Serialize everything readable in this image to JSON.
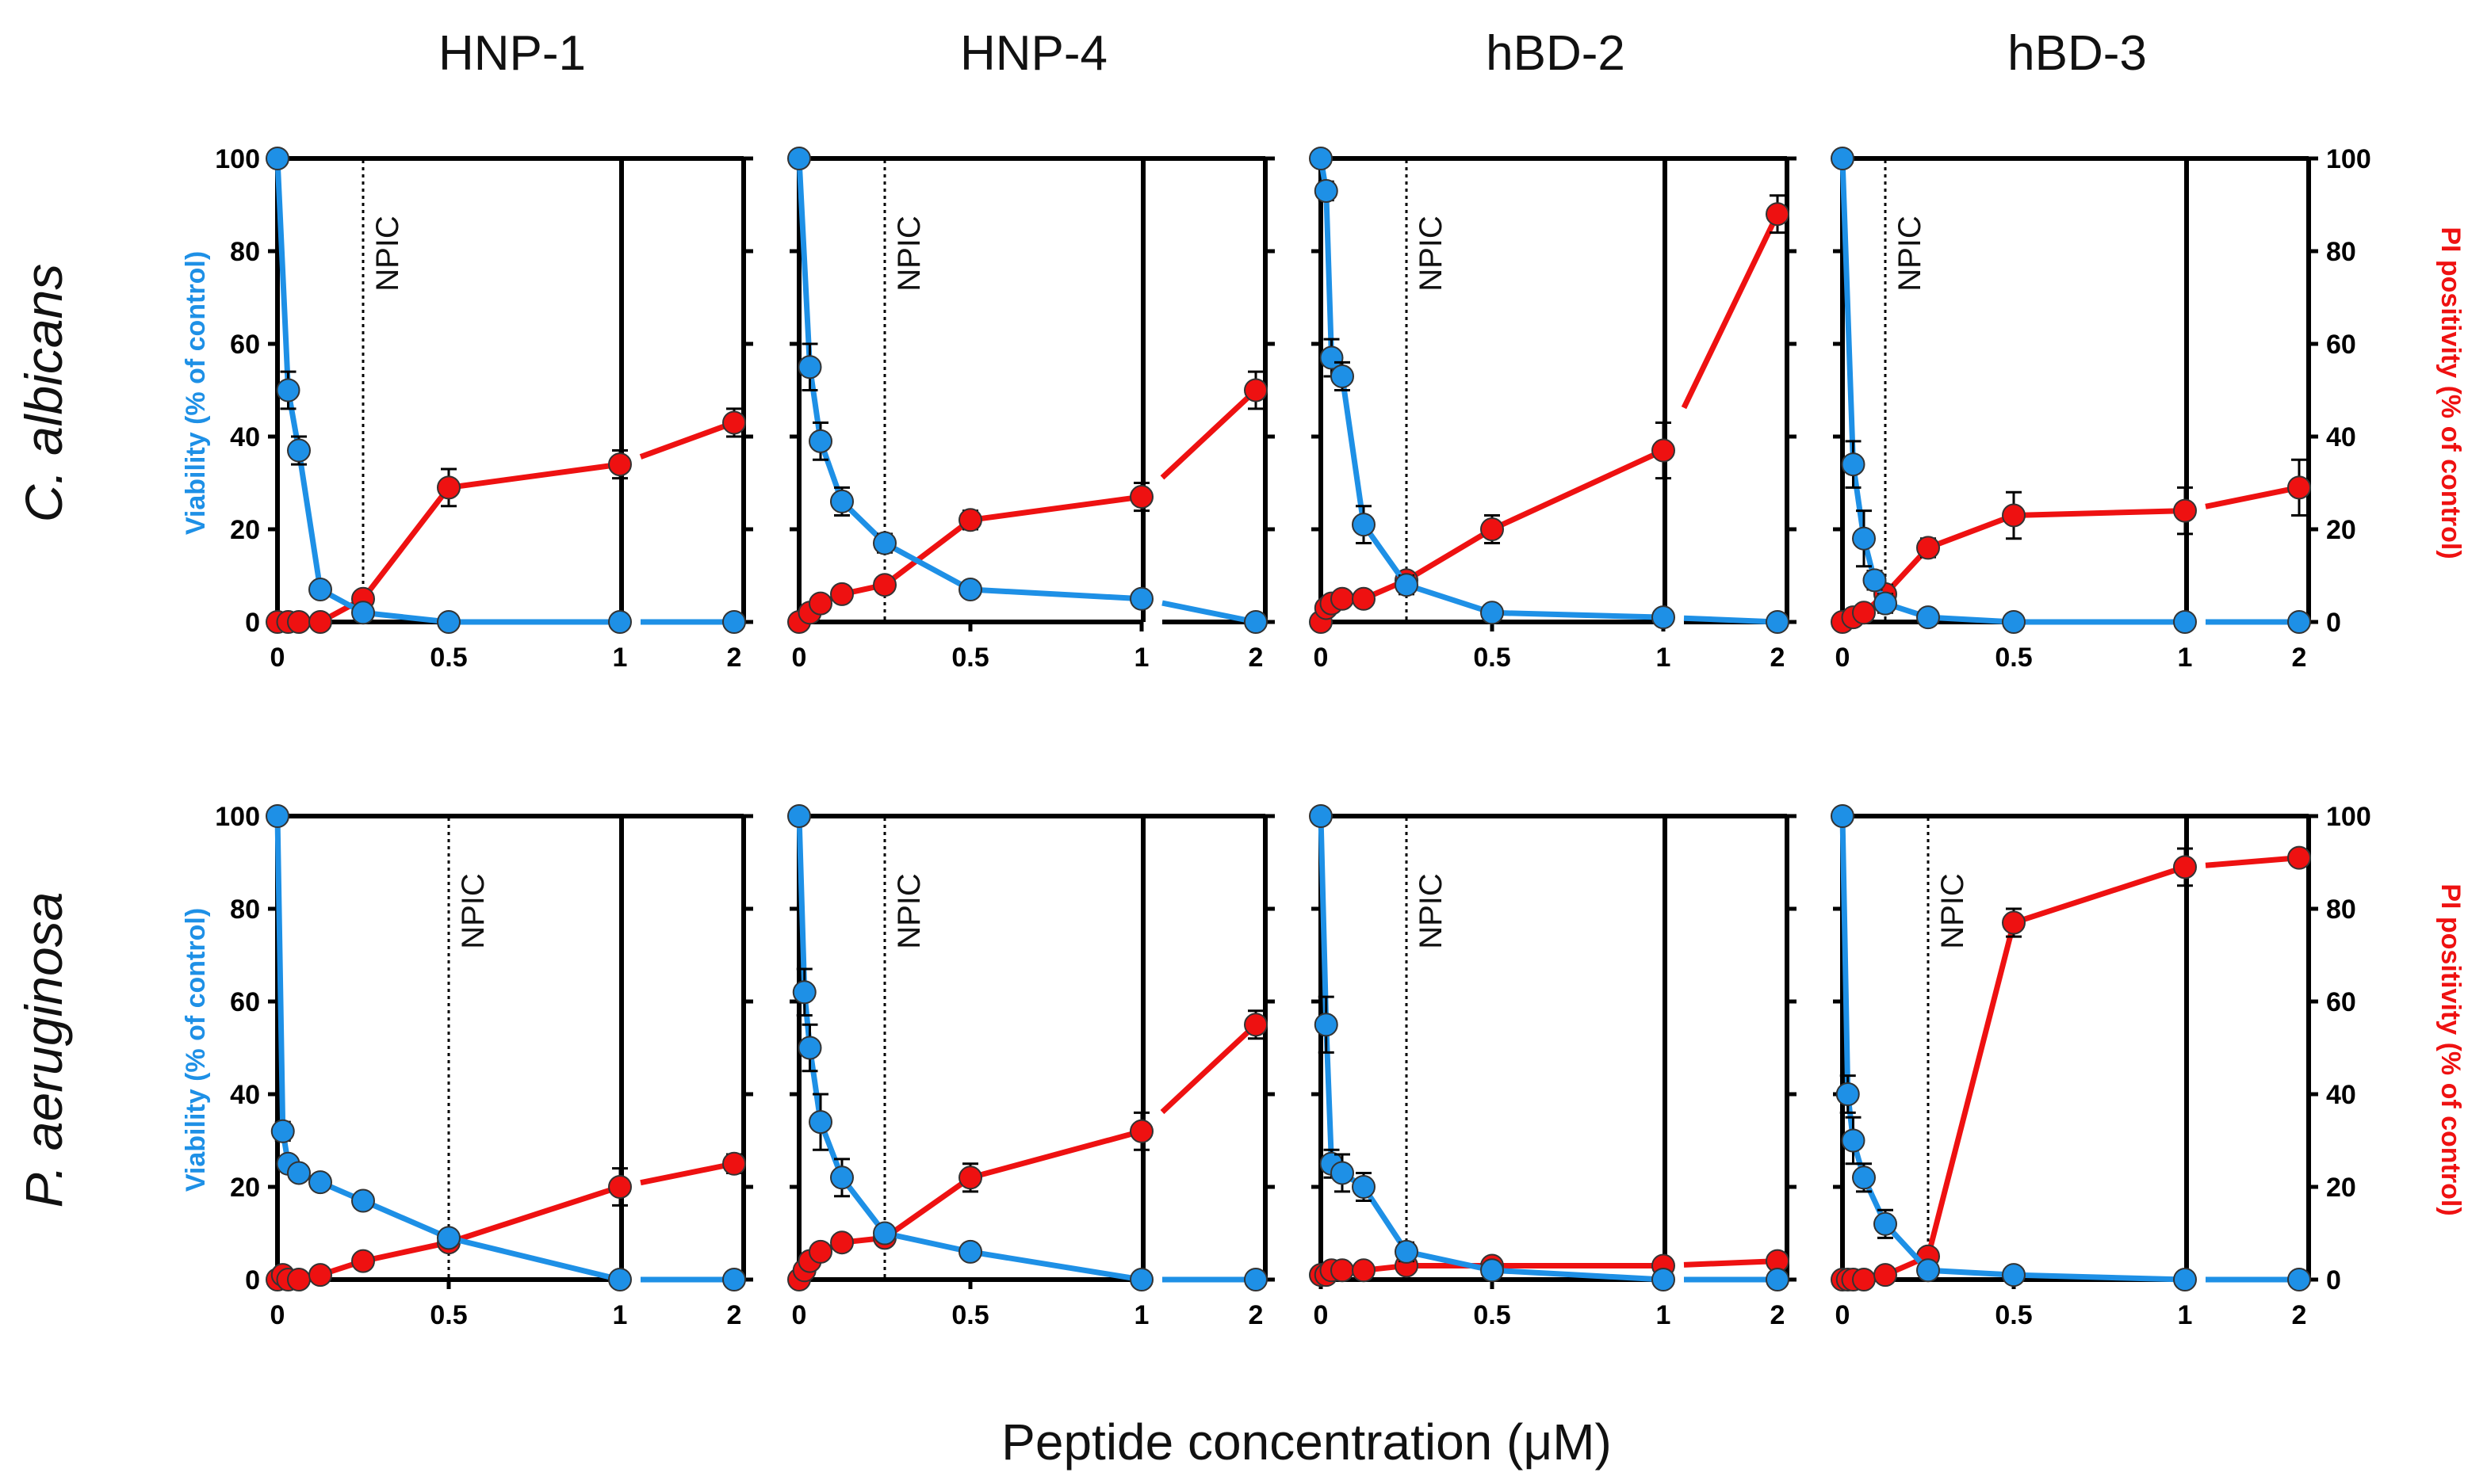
{
  "figure": {
    "x_axis_label": "Peptide concentration (μM)",
    "left_axis_label": "Viability (% of control)",
    "right_axis_label": "PI positivity (% of control)",
    "threshold_label": "NPIC",
    "colors": {
      "viability": "#1e90e6",
      "pi": "#ee1111",
      "axis": "#000000"
    }
  },
  "chart_data": {
    "type": "line",
    "x_ticks": [
      0,
      0.5,
      1,
      2
    ],
    "x_tick_labels": [
      "0",
      "0.5",
      "1",
      "2"
    ],
    "y_ticks": [
      0,
      20,
      40,
      60,
      80,
      100
    ],
    "y_tick_labels": [
      "0",
      "20",
      "40",
      "60",
      "80",
      "100"
    ],
    "ylim": [
      0,
      100
    ],
    "x": [
      0,
      0.03125,
      0.0625,
      0.125,
      0.25,
      0.5,
      1,
      2
    ],
    "columns": [
      "HNP-1",
      "HNP-4",
      "hBD-2",
      "hBD-3"
    ],
    "rows": [
      "C. albicans",
      "P. aeruginosa"
    ],
    "panels": [
      {
        "row": 0,
        "col": 0,
        "peptide": "HNP-1",
        "organism": "C. albicans",
        "npic": 0.25,
        "viability": [
          100,
          50,
          37,
          7,
          2,
          0,
          0,
          0
        ],
        "pi": [
          0,
          0,
          0,
          0,
          5,
          29,
          34,
          43
        ],
        "pi_err": [
          0,
          0,
          0,
          0,
          1,
          4,
          3,
          3
        ],
        "via_err": [
          0,
          4,
          3,
          1,
          1,
          0,
          0,
          0
        ]
      },
      {
        "row": 0,
        "col": 1,
        "peptide": "HNP-4",
        "organism": "C. albicans",
        "npic": 0.25,
        "viability": [
          100,
          55,
          39,
          26,
          17,
          7,
          5,
          0
        ],
        "pi": [
          0,
          2,
          4,
          6,
          8,
          22,
          27,
          50
        ],
        "pi_err": [
          0,
          1,
          1,
          1,
          1,
          2,
          3,
          4
        ],
        "via_err": [
          0,
          5,
          4,
          3,
          2,
          1,
          1,
          0
        ]
      },
      {
        "row": 0,
        "col": 2,
        "peptide": "hBD-2",
        "organism": "C. albicans",
        "npic": 0.25,
        "viability": [
          100,
          93,
          57,
          53,
          21,
          8,
          2,
          1,
          0
        ],
        "vx": [
          0,
          0.015625,
          0.03125,
          0.0625,
          0.125,
          0.25,
          0.5,
          1,
          2
        ],
        "pi": [
          0,
          3,
          4,
          5,
          5,
          9,
          20,
          37,
          88
        ],
        "px": [
          0,
          0.015625,
          0.03125,
          0.0625,
          0.125,
          0.25,
          0.5,
          1,
          2
        ],
        "pi_err": [
          0,
          1,
          1,
          1,
          1,
          1,
          3,
          6,
          4
        ],
        "via_err": [
          0,
          2,
          4,
          3,
          4,
          2,
          1,
          0,
          0
        ]
      },
      {
        "row": 0,
        "col": 3,
        "peptide": "hBD-3",
        "organism": "C. albicans",
        "npic": 0.125,
        "viability": [
          100,
          34,
          18,
          9,
          4,
          1,
          0,
          0,
          0
        ],
        "vx": [
          0,
          0.03125,
          0.0625,
          0.09375,
          0.125,
          0.25,
          0.5,
          1,
          2
        ],
        "pi": [
          0,
          1,
          2,
          6,
          16,
          23,
          24,
          29
        ],
        "px": [
          0,
          0.03125,
          0.0625,
          0.125,
          0.25,
          0.5,
          1,
          2
        ],
        "pi_err": [
          0,
          1,
          1,
          2,
          2,
          5,
          5,
          6
        ],
        "via_err": [
          0,
          5,
          6,
          2,
          2,
          1,
          0,
          0,
          0
        ]
      },
      {
        "row": 1,
        "col": 0,
        "peptide": "HNP-1",
        "organism": "P. aeruginosa",
        "npic": 0.5,
        "viability": [
          100,
          32,
          25,
          23,
          21,
          17,
          9,
          0,
          0
        ],
        "vx": [
          0,
          0.015625,
          0.03125,
          0.0625,
          0.125,
          0.25,
          0.5,
          1,
          2
        ],
        "pi": [
          0,
          1,
          0,
          0,
          1,
          4,
          8,
          20,
          25
        ],
        "px": [
          0,
          0.015625,
          0.03125,
          0.0625,
          0.125,
          0.25,
          0.5,
          1,
          2
        ],
        "pi_err": [
          0,
          0,
          0,
          0,
          0,
          1,
          1,
          4,
          2
        ],
        "via_err": [
          0,
          2,
          1,
          1,
          1,
          1,
          1,
          0,
          0
        ]
      },
      {
        "row": 1,
        "col": 1,
        "peptide": "HNP-4",
        "organism": "P. aeruginosa",
        "npic": 0.25,
        "viability": [
          100,
          62,
          50,
          34,
          22,
          10,
          6,
          0,
          0
        ],
        "vx": [
          0,
          0.015625,
          0.03125,
          0.0625,
          0.125,
          0.25,
          0.5,
          1,
          2
        ],
        "pi": [
          0,
          2,
          4,
          6,
          8,
          9,
          22,
          32,
          55
        ],
        "px": [
          0,
          0.015625,
          0.03125,
          0.0625,
          0.125,
          0.25,
          0.5,
          1,
          2
        ],
        "pi_err": [
          0,
          1,
          1,
          1,
          1,
          1,
          3,
          4,
          3
        ],
        "via_err": [
          0,
          5,
          5,
          6,
          4,
          1,
          1,
          0,
          0
        ]
      },
      {
        "row": 1,
        "col": 2,
        "peptide": "hBD-2",
        "organism": "P. aeruginosa",
        "npic": 0.25,
        "viability": [
          100,
          55,
          25,
          23,
          20,
          6,
          2,
          0,
          0
        ],
        "vx": [
          0,
          0.015625,
          0.03125,
          0.0625,
          0.125,
          0.25,
          0.5,
          1,
          2
        ],
        "pi": [
          1,
          1,
          2,
          2,
          2,
          3,
          3,
          3,
          4
        ],
        "px": [
          0,
          0.015625,
          0.03125,
          0.0625,
          0.125,
          0.25,
          0.5,
          1,
          2
        ],
        "pi_err": [
          0,
          0,
          0,
          0,
          0,
          1,
          1,
          1,
          1
        ],
        "via_err": [
          0,
          6,
          3,
          4,
          3,
          2,
          1,
          0,
          0
        ]
      },
      {
        "row": 1,
        "col": 3,
        "peptide": "hBD-3",
        "organism": "P. aeruginosa",
        "npic": 0.25,
        "viability": [
          100,
          40,
          30,
          22,
          12,
          2,
          1,
          0,
          0
        ],
        "vx": [
          0,
          0.015625,
          0.03125,
          0.0625,
          0.125,
          0.25,
          0.5,
          1,
          2
        ],
        "pi": [
          0,
          0,
          0,
          0,
          1,
          5,
          77,
          89,
          91
        ],
        "px": [
          0,
          0.015625,
          0.03125,
          0.0625,
          0.125,
          0.25,
          0.5,
          1,
          2
        ],
        "pi_err": [
          0,
          0,
          0,
          0,
          0,
          1,
          3,
          4,
          1
        ],
        "via_err": [
          0,
          4,
          5,
          3,
          3,
          1,
          0,
          0,
          0
        ]
      }
    ]
  }
}
